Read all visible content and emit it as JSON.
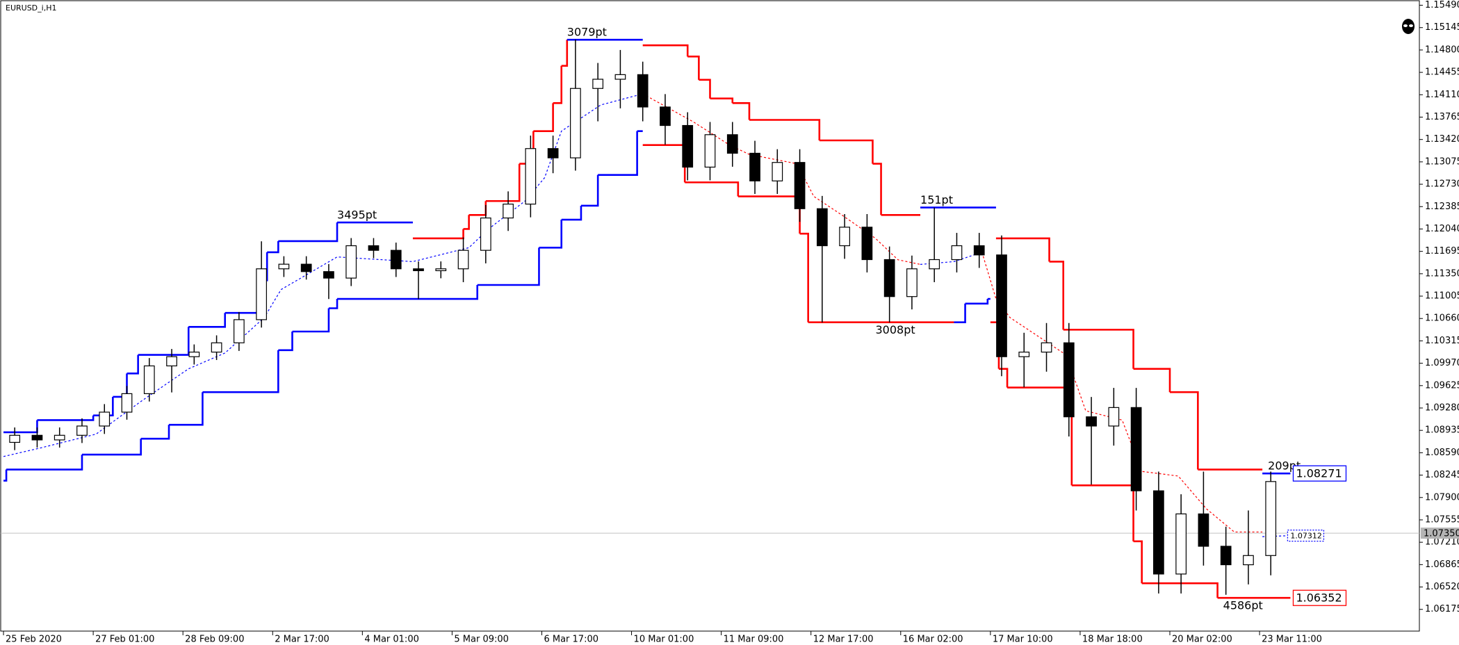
{
  "chart_data": {
    "type": "candlestick",
    "title": "EURUSD_i,H1",
    "xlim": [
      -1,
      505
    ],
    "xticks": [
      {
        "value": 0,
        "label": "25 Feb 2020"
      },
      {
        "value": 32,
        "label": "27 Feb 01:00"
      },
      {
        "value": 64,
        "label": "28 Feb 09:00"
      },
      {
        "value": 96,
        "label": "2 Mar 17:00"
      },
      {
        "value": 128,
        "label": "4 Mar 01:00"
      },
      {
        "value": 160,
        "label": "5 Mar 09:00"
      },
      {
        "value": 192,
        "label": "6 Mar 17:00"
      },
      {
        "value": 224,
        "label": "10 Mar 01:00"
      },
      {
        "value": 256,
        "label": "11 Mar 09:00"
      },
      {
        "value": 288,
        "label": "12 Mar 17:00"
      },
      {
        "value": 320,
        "label": "16 Mar 02:00"
      },
      {
        "value": 352,
        "label": "17 Mar 10:00"
      },
      {
        "value": 384,
        "label": "18 Mar 18:00"
      },
      {
        "value": 416,
        "label": "20 Mar 02:00"
      },
      {
        "value": 448,
        "label": "23 Mar 11:00"
      }
    ],
    "ylim": [
      1.0584,
      1.1556
    ],
    "yticks": [
      {
        "value": 1.1549,
        "label": "1.15490"
      },
      1.15145,
      {
        "value": 1.148,
        "label": "1.14800"
      },
      1.14455,
      {
        "value": 1.1411,
        "label": "1.14110"
      },
      1.13765,
      {
        "value": 1.1342,
        "label": "1.13420"
      },
      1.13075,
      {
        "value": 1.1273,
        "label": "1.12730"
      },
      1.12385,
      {
        "value": 1.1204,
        "label": "1.12040"
      },
      1.11695,
      {
        "value": 1.1135,
        "label": "1.11350"
      },
      1.11005,
      {
        "value": 1.1066,
        "label": "1.10660"
      },
      1.10315,
      {
        "value": 1.0997,
        "label": "1.09970"
      },
      1.09625,
      {
        "value": 1.0928,
        "label": "1.09280"
      },
      1.08935,
      {
        "value": 1.0859,
        "label": "1.08590"
      },
      1.08245,
      {
        "value": 1.079,
        "label": "1.07900"
      },
      1.07555,
      {
        "value": 1.0721,
        "label": "1.07210"
      },
      1.06865,
      {
        "value": 1.0652,
        "label": "1.06520"
      },
      1.06175
    ],
    "bull_color": "#ffffff",
    "bear_color": "#000000",
    "candles": {
      "x": [
        4,
        12,
        20,
        28,
        36,
        44,
        52,
        60,
        68,
        76,
        84,
        92,
        100,
        108,
        116,
        124,
        132,
        140,
        148,
        156,
        164,
        172,
        180,
        188,
        196,
        204,
        212,
        220,
        228,
        236,
        244,
        252,
        260,
        268,
        276,
        284,
        292,
        300,
        308,
        316,
        324,
        332,
        340,
        348,
        356,
        364,
        372,
        380,
        388,
        396,
        404,
        412,
        420,
        428,
        436,
        444,
        452
      ],
      "open": [
        1.0875,
        1.08859,
        1.08788,
        1.08859,
        1.09002,
        1.09216,
        1.09501,
        1.09929,
        1.10071,
        1.10142,
        1.10285,
        1.10642,
        1.11426,
        1.11497,
        1.11383,
        1.11283,
        1.11782,
        1.11711,
        1.11426,
        1.11397,
        1.11426,
        1.11711,
        1.1221,
        1.12424,
        1.1328,
        1.13137,
        1.14207,
        1.14349,
        1.1442,
        1.13921,
        1.13636,
        1.12994,
        1.13494,
        1.13208,
        1.12781,
        1.13066,
        1.12353,
        1.11782,
        1.12068,
        1.11568,
        1.10998,
        1.11426,
        1.11568,
        1.11782,
        1.1164,
        1.10071,
        1.10142,
        1.10285,
        1.09144,
        1.09002,
        1.09287,
        1.08003,
        1.0672,
        1.07647,
        1.07148,
        1.06863,
        1.07005
      ],
      "high": [
        1.0898,
        1.0898,
        1.0898,
        1.0912,
        1.0934,
        1.0962,
        1.1005,
        1.1019,
        1.1026,
        1.104,
        1.1076,
        1.1185,
        1.1162,
        1.1162,
        1.115,
        1.119,
        1.119,
        1.1183,
        1.1154,
        1.1154,
        1.1191,
        1.1241,
        1.1262,
        1.1348,
        1.1348,
        1.1496,
        1.146,
        1.148,
        1.1462,
        1.1412,
        1.1384,
        1.1369,
        1.1369,
        1.134,
        1.1327,
        1.1327,
        1.1255,
        1.1227,
        1.1227,
        1.1177,
        1.1163,
        1.1237,
        1.1198,
        1.1198,
        1.1194,
        1.1044,
        1.1059,
        1.1059,
        1.0945,
        1.0959,
        1.0959,
        1.083,
        1.0795,
        1.083,
        1.0745,
        1.077,
        1.083
      ],
      "low": [
        1.0863,
        1.0867,
        1.0867,
        1.0874,
        1.0888,
        1.091,
        1.0938,
        1.0952,
        1.0995,
        1.1002,
        1.1016,
        1.1052,
        1.113,
        1.1126,
        1.1096,
        1.1116,
        1.1159,
        1.113,
        1.1096,
        1.1128,
        1.1122,
        1.1151,
        1.1201,
        1.1222,
        1.129,
        1.1294,
        1.137,
        1.139,
        1.137,
        1.1334,
        1.1279,
        1.1279,
        1.13,
        1.1258,
        1.1258,
        1.1215,
        1.106,
        1.1158,
        1.1137,
        1.106,
        1.108,
        1.1122,
        1.1137,
        1.1144,
        1.0977,
        1.096,
        1.0984,
        1.0884,
        1.081,
        1.087,
        1.077,
        1.0642,
        1.0642,
        1.0685,
        1.064,
        1.0656,
        1.067
      ],
      "close": [
        1.08859,
        1.08788,
        1.08859,
        1.09002,
        1.09216,
        1.09501,
        1.09929,
        1.10071,
        1.10142,
        1.10285,
        1.10642,
        1.11426,
        1.11497,
        1.11383,
        1.11283,
        1.11782,
        1.11711,
        1.11426,
        1.11397,
        1.11426,
        1.11711,
        1.1221,
        1.12424,
        1.1328,
        1.13137,
        1.14207,
        1.14349,
        1.1442,
        1.13921,
        1.13636,
        1.12994,
        1.13494,
        1.13208,
        1.12781,
        1.13066,
        1.12353,
        1.11782,
        1.12068,
        1.11568,
        1.10998,
        1.11426,
        1.11568,
        1.11782,
        1.1164,
        1.10071,
        1.10142,
        1.10285,
        1.09144,
        1.09002,
        1.09287,
        1.08003,
        1.0672,
        1.07647,
        1.07148,
        1.06863,
        1.07005,
        1.08146
      ]
    },
    "channels": [
      {
        "color": "#0000ff",
        "x": [
          0,
          12,
          32,
          39,
          44,
          48,
          66,
          79,
          91,
          94,
          98,
          119,
          146
        ],
        "values": [
          1.08906,
          1.09093,
          1.09165,
          1.09452,
          1.09812,
          1.10099,
          1.10531,
          1.10746,
          1.11249,
          1.11681,
          1.11853,
          1.12141,
          1.12141
        ]
      },
      {
        "color": "#ff0000",
        "x": [
          146,
          164,
          166,
          172,
          184,
          189,
          196,
          199,
          201
        ],
        "values": [
          1.11896,
          1.1204,
          1.12256,
          1.12471,
          1.13046,
          1.13549,
          1.13981,
          1.14556,
          1.14958
        ]
      },
      {
        "color": "#0000ff",
        "x": [
          201,
          228
        ],
        "values": [
          1.14958,
          1.14958
        ]
      },
      {
        "color": "#ff0000",
        "x": [
          228,
          244,
          248,
          252,
          260,
          266,
          291,
          310,
          313,
          327
        ],
        "values": [
          1.14872,
          1.14699,
          1.1434,
          1.14052,
          1.13981,
          1.13722,
          1.13406,
          1.13046,
          1.12256,
          1.12256
        ]
      },
      {
        "color": "#0000ff",
        "x": [
          327,
          354
        ],
        "values": [
          1.12371,
          1.12371
        ]
      },
      {
        "color": "#ff0000",
        "x": [
          354,
          373,
          378,
          403,
          416,
          426,
          449
        ],
        "values": [
          1.11896,
          1.11537,
          1.10487,
          1.09884,
          1.09524,
          1.08331,
          1.08331
        ]
      },
      {
        "color": "#0000ff",
        "x": [
          449,
          459
        ],
        "values": [
          1.08271,
          1.08271
        ]
      },
      {
        "color": "#0000ff",
        "x": [
          0,
          1,
          28,
          49,
          59,
          71,
          98,
          103,
          116,
          119,
          169,
          191,
          199,
          206,
          212,
          226,
          228
        ],
        "values": [
          1.08159,
          1.08331,
          1.08561,
          1.08806,
          1.09021,
          1.09524,
          1.10171,
          1.10459,
          1.10818,
          1.10962,
          1.11177,
          1.11752,
          1.12184,
          1.12399,
          1.12874,
          1.13549,
          1.13549
        ]
      },
      {
        "color": "#ff0000",
        "x": [
          228,
          243,
          262,
          284,
          287,
          339
        ],
        "values": [
          1.13334,
          1.12759,
          1.12543,
          1.11968,
          1.10602,
          1.10602
        ]
      },
      {
        "color": "#0000ff",
        "x": [
          339,
          343,
          351,
          352
        ],
        "values": [
          1.10602,
          1.1089,
          1.10962,
          1.10962
        ]
      },
      {
        "color": "#ff0000",
        "x": [
          352,
          355,
          358,
          381,
          403,
          406,
          433,
          459
        ],
        "values": [
          1.10602,
          1.09884,
          1.09596,
          1.08087,
          1.07224,
          1.06577,
          1.06352,
          1.06352
        ]
      }
    ],
    "mid": [
      {
        "color": "#0000ff",
        "x": [
          0,
          13,
          33,
          49,
          66,
          79,
          93,
          99,
          119,
          146,
          166,
          173,
          186,
          193,
          199,
          213,
          228
        ],
        "values": [
          1.08532,
          1.08662,
          1.08877,
          1.09381,
          1.09884,
          1.10128,
          1.10674,
          1.11106,
          1.11609,
          1.11537,
          1.11752,
          1.1204,
          1.12471,
          1.12831,
          1.13549,
          1.13952,
          1.14124
        ]
      },
      {
        "color": "#ff0000",
        "x": [
          228,
          246,
          259,
          266,
          283,
          289,
          299,
          311,
          319,
          327
        ],
        "values": [
          1.14124,
          1.13693,
          1.13334,
          1.1319,
          1.13046,
          1.12543,
          1.12256,
          1.11896,
          1.11566,
          1.11494
        ]
      },
      {
        "color": "#0000ff",
        "x": [
          327,
          339,
          349
        ],
        "values": [
          1.11494,
          1.11537,
          1.11681
        ]
      },
      {
        "color": "#ff0000",
        "x": [
          349,
          354,
          359,
          379,
          386,
          399,
          406,
          419,
          429,
          439,
          449
        ],
        "values": [
          1.11681,
          1.10962,
          1.10674,
          1.10099,
          1.09237,
          1.09093,
          1.08302,
          1.08231,
          1.07727,
          1.07368,
          1.07368
        ]
      },
      {
        "color": "#0000ff",
        "x": [
          449,
          459
        ],
        "values": [
          1.07296,
          1.07312
        ]
      }
    ],
    "annotations": [
      {
        "text": "3495pt",
        "x": 119,
        "y": 1.12141,
        "color": "#0000ff",
        "place": "above"
      },
      {
        "text": "3079pt",
        "x": 201,
        "y": 1.14958,
        "color": "#0000ff",
        "place": "above"
      },
      {
        "text": "151pt",
        "x": 327,
        "y": 1.12371,
        "color": "#0000ff",
        "place": "above"
      },
      {
        "text": "3008pt",
        "x": 311,
        "y": 1.10602,
        "color": "#ff0000",
        "place": "below"
      },
      {
        "text": "4586pt",
        "x": 435,
        "y": 1.06352,
        "color": "#ff0000",
        "place": "below"
      },
      {
        "text": "209pt",
        "x": 451,
        "y": 1.08271,
        "color": "#0000ff",
        "place": "above"
      }
    ],
    "price_tags": [
      {
        "value": 1.08271,
        "color": "#0000ff",
        "x": 460
      },
      {
        "value": 1.06352,
        "color": "#ff0000",
        "x": 460
      },
      {
        "value": 1.07312,
        "color": "#0000ff",
        "x": 458
      }
    ],
    "bid": {
      "value": 1.0735,
      "label": "1.07350"
    }
  }
}
